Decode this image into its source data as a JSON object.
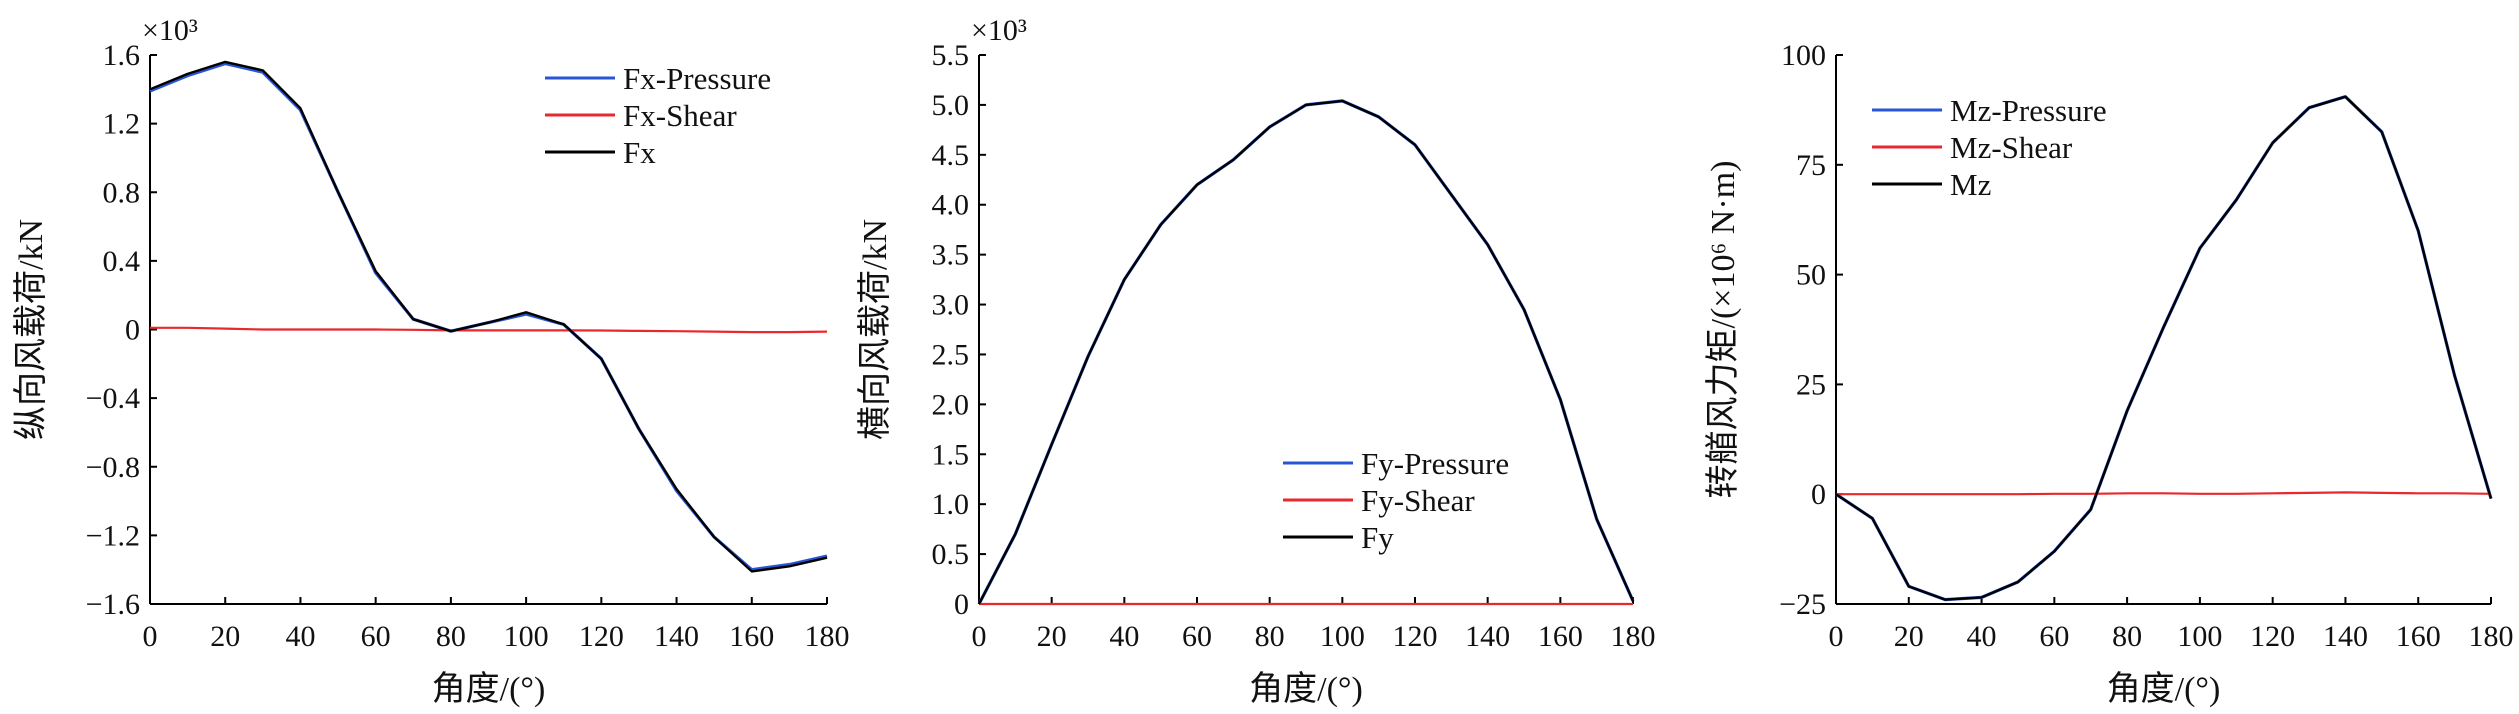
{
  "colors": {
    "pressure": "#2855d6",
    "shear": "#e8282d",
    "total": "#000000",
    "axis": "#000000"
  },
  "chart_data": [
    {
      "id": "fx",
      "type": "line",
      "xlabel": "角度/(°)",
      "ylabel": "纵向风载荷/kN",
      "y_multiplier_label": "×10³",
      "xlim": [
        0,
        180
      ],
      "ylim": [
        -1.6,
        1.6
      ],
      "x_ticks": [
        0,
        20,
        40,
        60,
        80,
        100,
        120,
        140,
        160,
        180
      ],
      "x_tick_labels": [
        "0",
        "20",
        "40",
        "60",
        "80",
        "100",
        "120",
        "140",
        "160",
        "180"
      ],
      "y_ticks": [
        -1.6,
        -1.2,
        -0.8,
        -0.4,
        0,
        0.4,
        0.8,
        1.2,
        1.6
      ],
      "y_tick_labels": [
        "−1.6",
        "−1.2",
        "−0.8",
        "−0.4",
        "0",
        "0.4",
        "0.8",
        "1.2",
        "1.6"
      ],
      "legend": [
        "Fx-Pressure",
        "Fx-Shear",
        "Fx"
      ],
      "legend_position": "top-right",
      "x": [
        0,
        10,
        20,
        30,
        40,
        50,
        60,
        70,
        80,
        90,
        100,
        110,
        120,
        130,
        140,
        150,
        160,
        170,
        180
      ],
      "series": [
        {
          "name": "Fx-Pressure",
          "color_key": "pressure",
          "values": [
            1.39,
            1.48,
            1.55,
            1.5,
            1.28,
            0.8,
            0.33,
            0.06,
            -0.01,
            0.04,
            0.09,
            0.03,
            -0.17,
            -0.58,
            -0.94,
            -1.21,
            -1.4,
            -1.37,
            -1.32
          ]
        },
        {
          "name": "Fx-Shear",
          "color_key": "shear",
          "values": [
            0.01,
            0.01,
            0.005,
            0.0,
            0.0,
            0.0,
            0.0,
            -0.002,
            -0.005,
            -0.005,
            -0.005,
            -0.005,
            -0.006,
            -0.008,
            -0.01,
            -0.012,
            -0.015,
            -0.015,
            -0.012
          ]
        },
        {
          "name": "Fx",
          "color_key": "total",
          "values": [
            1.4,
            1.49,
            1.56,
            1.51,
            1.29,
            0.8,
            0.34,
            0.06,
            -0.01,
            0.04,
            0.1,
            0.03,
            -0.17,
            -0.58,
            -0.93,
            -1.21,
            -1.41,
            -1.38,
            -1.33
          ]
        }
      ]
    },
    {
      "id": "fy",
      "type": "line",
      "xlabel": "角度/(°)",
      "ylabel": "横向风载荷/kN",
      "y_multiplier_label": "×10³",
      "xlim": [
        0,
        180
      ],
      "ylim": [
        0,
        5.5
      ],
      "x_ticks": [
        0,
        20,
        40,
        60,
        80,
        100,
        120,
        140,
        160,
        180
      ],
      "x_tick_labels": [
        "0",
        "20",
        "40",
        "60",
        "80",
        "100",
        "120",
        "140",
        "160",
        "180"
      ],
      "y_ticks": [
        0,
        0.5,
        1.0,
        1.5,
        2.0,
        2.5,
        3.0,
        3.5,
        4.0,
        4.5,
        5.0,
        5.5
      ],
      "y_tick_labels": [
        "0",
        "0.5",
        "1.0",
        "1.5",
        "2.0",
        "2.5",
        "3.0",
        "3.5",
        "4.0",
        "4.5",
        "5.0",
        "5.5"
      ],
      "legend": [
        "Fy-Pressure",
        "Fy-Shear",
        "Fy"
      ],
      "legend_position": "bottom-right",
      "x": [
        0,
        10,
        20,
        30,
        40,
        50,
        60,
        70,
        80,
        90,
        100,
        110,
        120,
        130,
        140,
        150,
        160,
        170,
        180
      ],
      "series": [
        {
          "name": "Fy-Pressure",
          "color_key": "pressure",
          "values": [
            0.0,
            0.7,
            1.6,
            2.48,
            3.25,
            3.8,
            4.2,
            4.45,
            4.78,
            5.0,
            5.04,
            4.88,
            4.6,
            4.1,
            3.6,
            2.95,
            2.05,
            0.85,
            0.03
          ]
        },
        {
          "name": "Fy-Shear",
          "color_key": "shear",
          "values": [
            0.0,
            0.0,
            0.0,
            0.0,
            0.0,
            0.0,
            0.0,
            0.0,
            0.0,
            0.0,
            0.0,
            0.0,
            0.0,
            0.0,
            0.0,
            0.0,
            0.0,
            0.0,
            0.0
          ]
        },
        {
          "name": "Fy",
          "color_key": "total",
          "values": [
            0.0,
            0.7,
            1.6,
            2.48,
            3.25,
            3.8,
            4.2,
            4.45,
            4.78,
            5.0,
            5.04,
            4.88,
            4.6,
            4.1,
            3.6,
            2.95,
            2.05,
            0.85,
            0.03
          ]
        }
      ]
    },
    {
      "id": "mz",
      "type": "line",
      "xlabel": "角度/(°)",
      "ylabel": "转艏风力矩/(×10⁶ N·m)",
      "xlim": [
        0,
        180
      ],
      "ylim": [
        -25,
        100
      ],
      "x_ticks": [
        0,
        20,
        40,
        60,
        80,
        100,
        120,
        140,
        160,
        180
      ],
      "x_tick_labels": [
        "0",
        "20",
        "40",
        "60",
        "80",
        "100",
        "120",
        "140",
        "160",
        "180"
      ],
      "y_ticks": [
        -25,
        0,
        25,
        50,
        75,
        100
      ],
      "y_tick_labels": [
        "−25",
        "0",
        "25",
        "50",
        "75",
        "100"
      ],
      "legend": [
        "Mz-Pressure",
        "Mz-Shear",
        "Mz"
      ],
      "legend_position": "top-left",
      "x": [
        0,
        10,
        20,
        30,
        40,
        50,
        60,
        70,
        80,
        90,
        100,
        110,
        120,
        130,
        140,
        150,
        160,
        170,
        180
      ],
      "series": [
        {
          "name": "Mz-Pressure",
          "color_key": "pressure",
          "values": [
            0,
            -5.5,
            -21,
            -24,
            -23.5,
            -20,
            -13,
            -3.5,
            19,
            38,
            56,
            67,
            80,
            88,
            90.5,
            82.5,
            60,
            27,
            -1
          ]
        },
        {
          "name": "Mz-Shear",
          "color_key": "shear",
          "values": [
            0,
            0,
            0,
            0,
            0,
            0,
            0.1,
            0.1,
            0.2,
            0.2,
            0.1,
            0.1,
            0.2,
            0.3,
            0.4,
            0.3,
            0.2,
            0.2,
            0.1
          ]
        },
        {
          "name": "Mz",
          "color_key": "total",
          "values": [
            0,
            -5.5,
            -21,
            -24,
            -23.5,
            -20,
            -13,
            -3.5,
            19,
            38,
            56,
            67,
            80,
            88,
            90.5,
            82.5,
            60,
            27,
            -1
          ]
        }
      ]
    }
  ]
}
